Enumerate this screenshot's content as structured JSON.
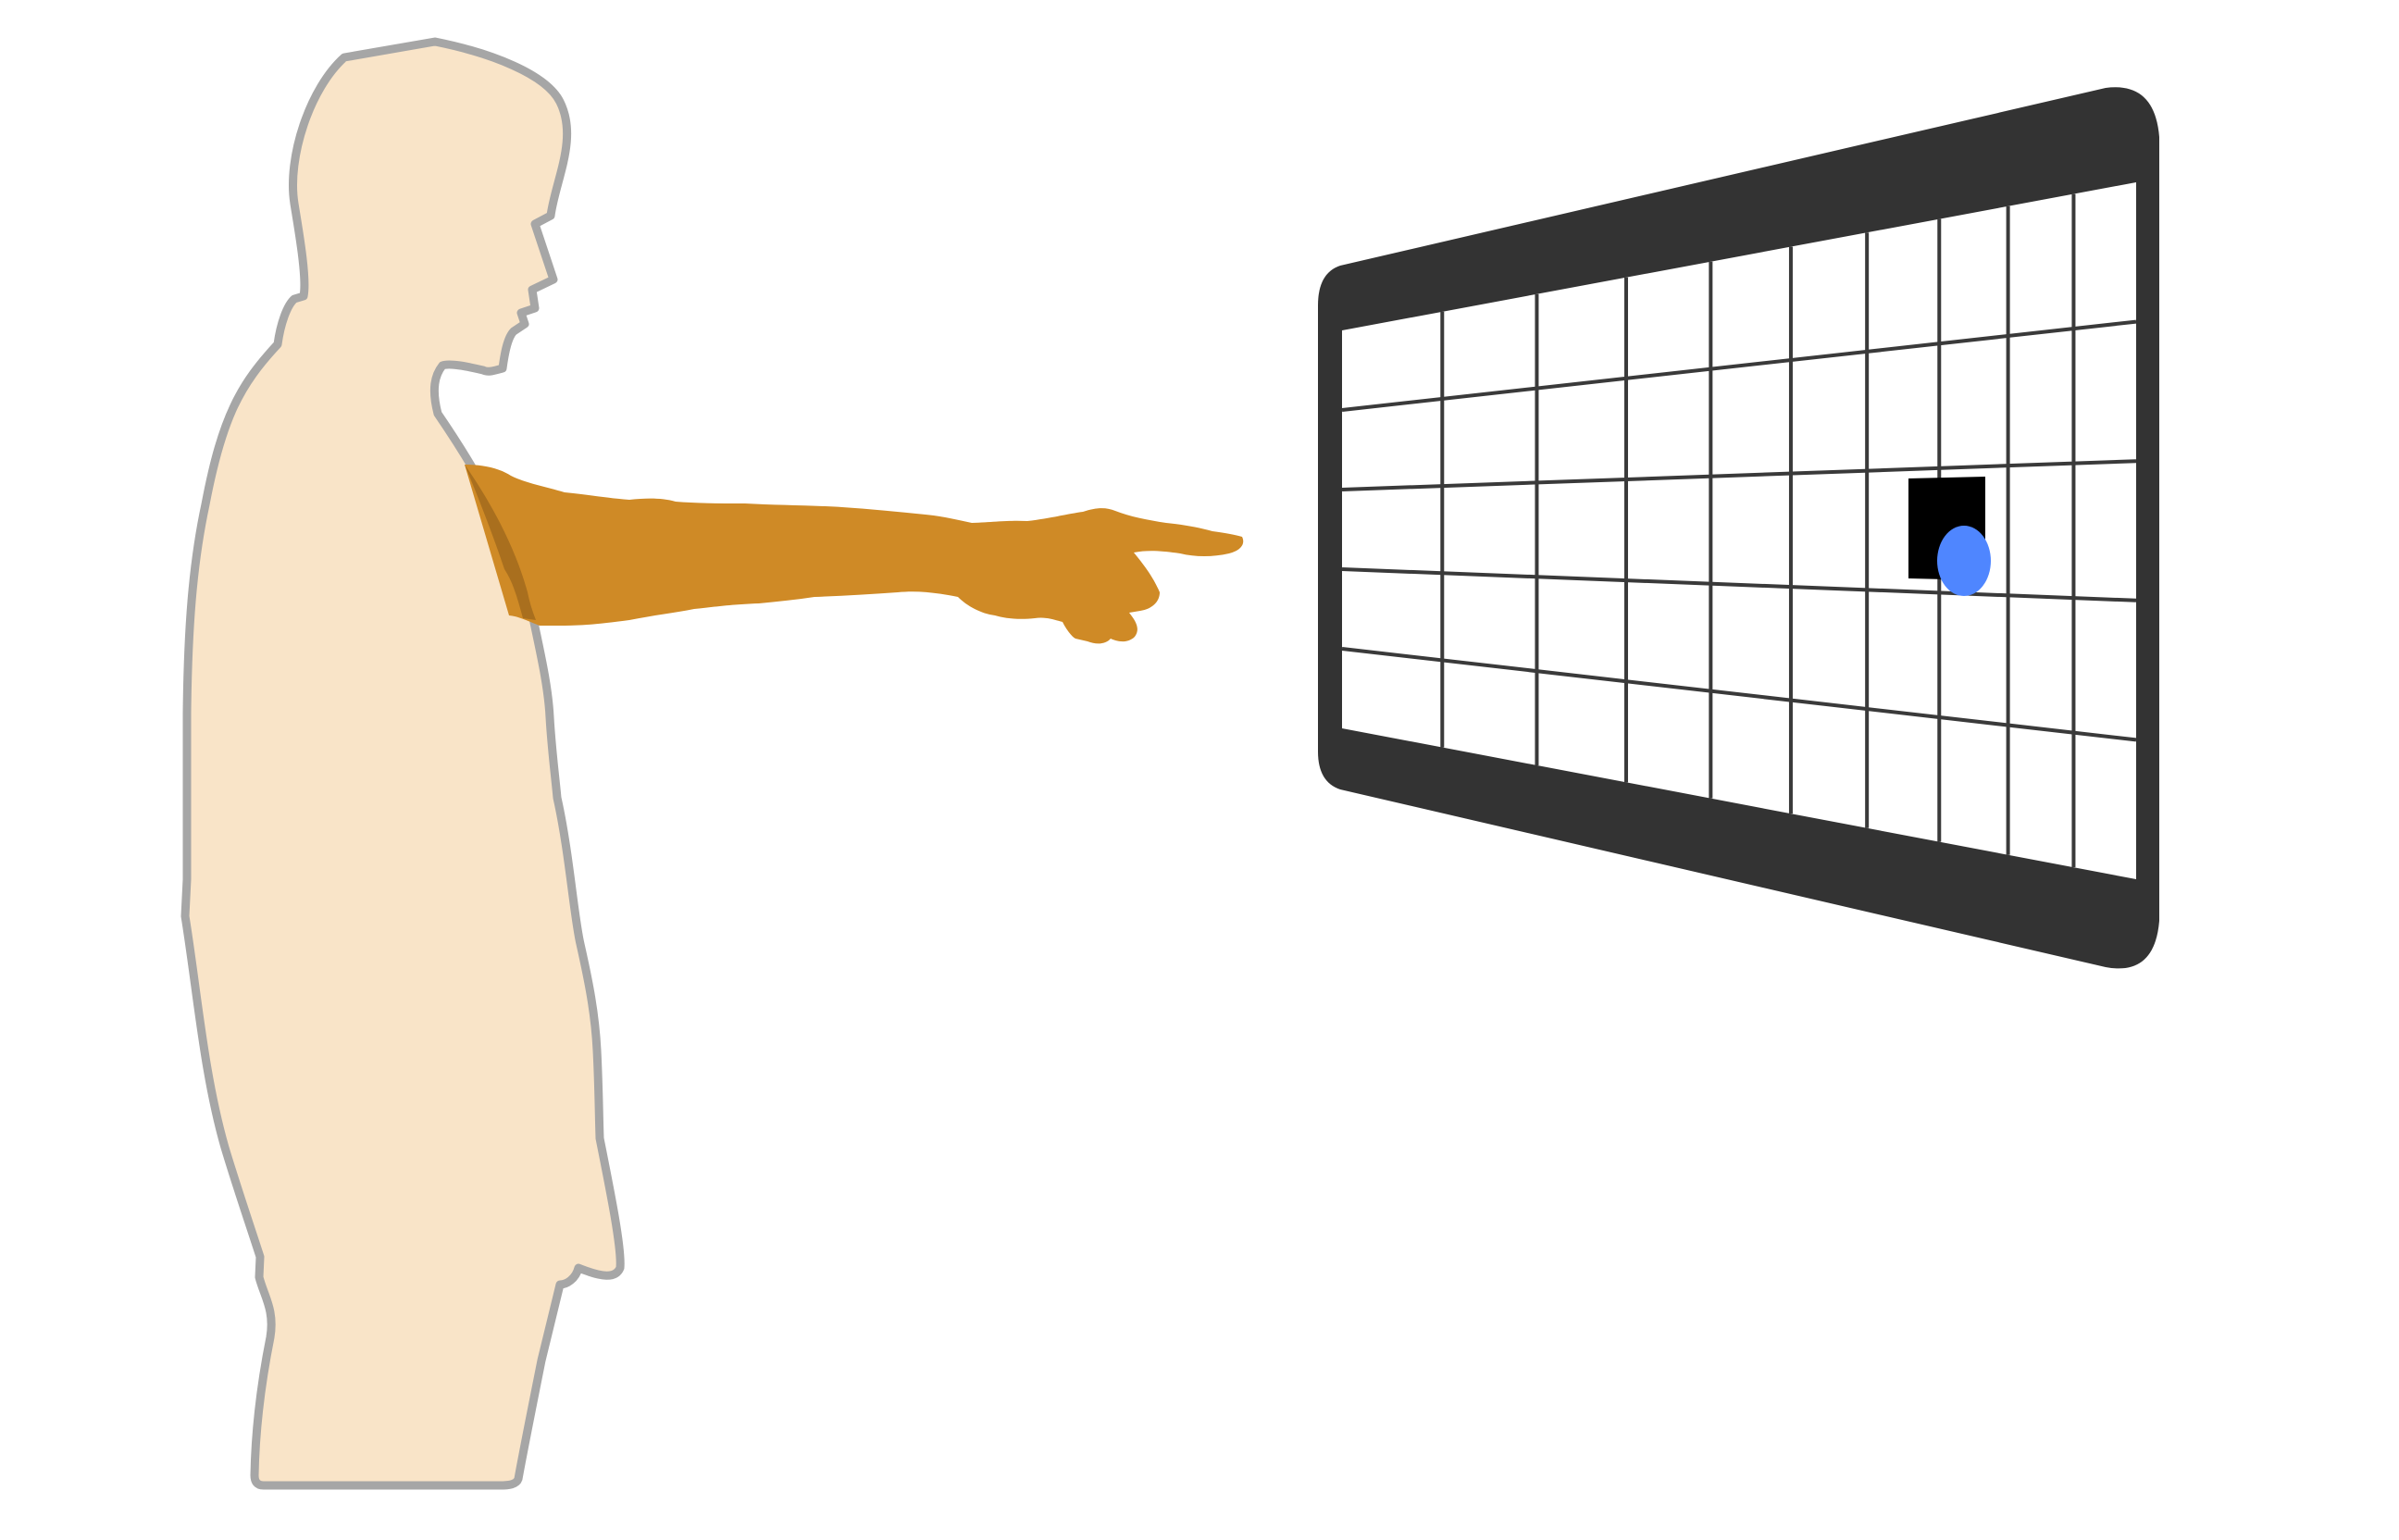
{
  "colors": {
    "background": "#ffffff",
    "body_fill": "#f9e4c8",
    "body_outline": "#a6a6a6",
    "arm": "#cf8a26",
    "screen_bezel": "#333333",
    "screen_surface": "#ffffff",
    "grid_line": "#3a3a3a",
    "target_square": "#000000",
    "pointer_dot": "#4f86ff"
  },
  "grid": {
    "columns": 10,
    "rows": 5,
    "target_cell": {
      "column": 7,
      "row": 2
    }
  },
  "icons": {
    "person": "standing-person-silhouette",
    "arm": "pointing-arm",
    "screen": "perspective-display-screen",
    "target": "target-square",
    "pointer": "pointer-dot"
  }
}
